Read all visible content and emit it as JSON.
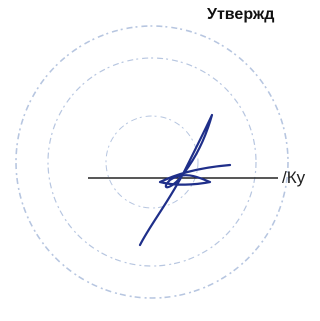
{
  "header": {
    "title": "Утвержд"
  },
  "signature": {
    "suffix": "/Ку"
  }
}
